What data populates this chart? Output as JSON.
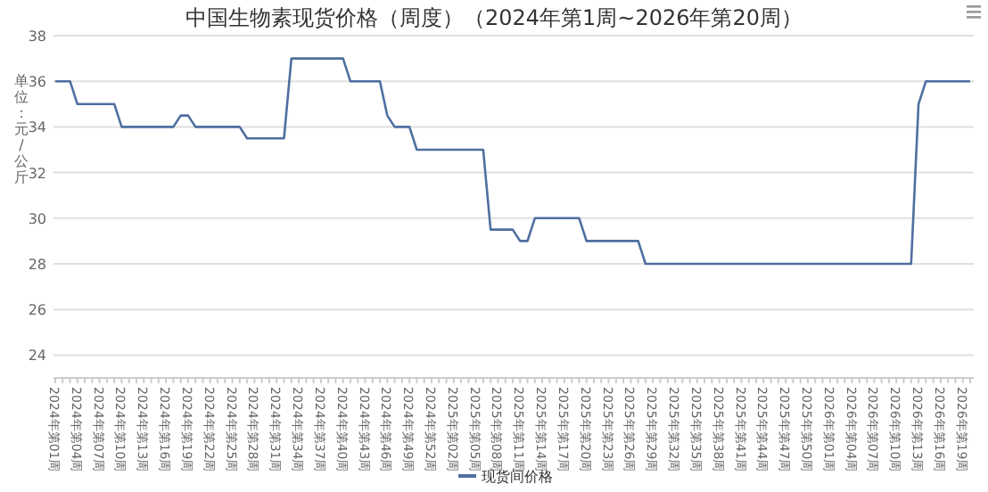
{
  "chart_data": {
    "type": "line",
    "title": "中国生物素现货价格（周度）（2024年第1周~2026年第20周）",
    "ylabel": "单位：元/公斤",
    "categories": [
      "2024年第01周",
      null,
      null,
      "2024年第04周",
      null,
      null,
      "2024年第07周",
      null,
      null,
      "2024年第10周",
      null,
      null,
      "2024年第13周",
      null,
      null,
      "2024年第16周",
      null,
      null,
      "2024年第19周",
      null,
      null,
      "2024年第22周",
      null,
      null,
      "2024年第25周",
      null,
      null,
      "2024年第28周",
      null,
      null,
      "2024年第31周",
      null,
      null,
      "2024年第34周",
      null,
      null,
      "2024年第37周",
      null,
      null,
      "2024年第40周",
      null,
      null,
      "2024年第43周",
      null,
      null,
      "2024年第46周",
      null,
      null,
      "2024年第49周",
      null,
      null,
      "2024年第52周",
      null,
      null,
      "2025年第02周",
      null,
      null,
      "2025年第05周",
      null,
      null,
      "2025年第08周",
      null,
      null,
      "2025年第11周",
      null,
      null,
      "2025年第14周",
      null,
      null,
      "2025年第17周",
      null,
      null,
      "2025年第20周",
      null,
      null,
      "2025年第23周",
      null,
      null,
      "2025年第26周",
      null,
      null,
      "2025年第29周",
      null,
      null,
      "2025年第32周",
      null,
      null,
      "2025年第35周",
      null,
      null,
      "2025年第38周",
      null,
      null,
      "2025年第41周",
      null,
      null,
      "2025年第44周",
      null,
      null,
      "2025年第47周",
      null,
      null,
      "2025年第50周",
      null,
      null,
      "2026年第01周",
      null,
      null,
      "2026年第04周",
      null,
      null,
      "2026年第07周",
      null,
      null,
      "2026年第10周",
      null,
      null,
      "2026年第13周",
      null,
      null,
      "2026年第16周",
      null,
      null,
      "2026年第19周",
      null
    ],
    "series": [
      {
        "name": "现货间价格",
        "color": "#4e6fa0",
        "values": [
          36,
          36,
          36,
          35,
          35,
          35,
          35,
          35,
          35,
          34,
          34,
          34,
          34,
          34,
          34,
          34,
          34,
          34.5,
          34.5,
          34,
          34,
          34,
          34,
          34,
          34,
          34,
          33.5,
          33.5,
          33.5,
          33.5,
          33.5,
          33.5,
          37,
          37,
          37,
          37,
          37,
          37,
          37,
          37,
          36,
          36,
          36,
          36,
          36,
          34.5,
          34,
          34,
          34,
          33,
          33,
          33,
          33,
          33,
          33,
          33,
          33,
          33,
          33,
          29.5,
          29.5,
          29.5,
          29.5,
          29,
          29,
          30,
          30,
          30,
          30,
          30,
          30,
          30,
          29,
          29,
          29,
          29,
          29,
          29,
          29,
          29,
          28,
          28,
          28,
          28,
          28,
          28,
          28,
          28,
          28,
          28,
          28,
          28,
          28,
          28,
          28,
          28,
          28,
          28,
          28,
          28,
          28,
          28,
          28,
          28,
          28,
          28,
          28,
          28,
          28,
          28,
          28,
          28,
          28,
          28,
          28,
          28,
          28,
          35,
          36,
          36,
          36,
          36,
          36,
          36,
          36
        ]
      }
    ],
    "ylim": [
      23,
      38
    ],
    "yticks": [
      24,
      26,
      28,
      30,
      32,
      34,
      36,
      38
    ],
    "grid": "y",
    "legend": "bottom",
    "marker": "none",
    "line_style": "solid"
  }
}
